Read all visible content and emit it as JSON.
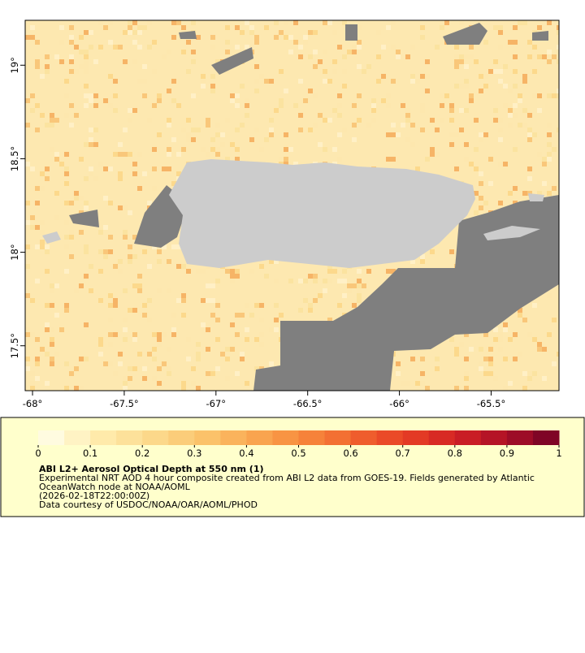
{
  "map": {
    "xlim": [
      -68.04,
      -65.13
    ],
    "ylim": [
      17.26,
      19.24
    ],
    "xticks": [
      {
        "value": -68,
        "label": "-68°"
      },
      {
        "value": -67.5,
        "label": "-67.5°"
      },
      {
        "value": -67,
        "label": "-67°"
      },
      {
        "value": -66.5,
        "label": "-66.5°"
      },
      {
        "value": -66,
        "label": "-66°"
      },
      {
        "value": -65.5,
        "label": "-65.5°"
      }
    ],
    "yticks": [
      {
        "value": 17.5,
        "label": "17.5°"
      },
      {
        "value": 18,
        "label": "18°"
      },
      {
        "value": 18.5,
        "label": "18.5°"
      },
      {
        "value": 19,
        "label": "19°"
      }
    ]
  },
  "colorbar": {
    "lim": [
      0,
      1
    ],
    "ticks": [
      0,
      0.1,
      0.2,
      0.3,
      0.4,
      0.5,
      0.6,
      0.7,
      0.8,
      0.9,
      1
    ],
    "colors": [
      "#fffbe0",
      "#fff3c4",
      "#ffeaaa",
      "#fde19a",
      "#fcd88a",
      "#fbcd7a",
      "#fbc26a",
      "#fab35c",
      "#f9a44f",
      "#f89443",
      "#f6823a",
      "#f37033",
      "#ef5d2d",
      "#ea4a28",
      "#e33a25",
      "#d82a24",
      "#c91d25",
      "#b51426",
      "#9d0c27",
      "#7f0526"
    ]
  },
  "legend": {
    "title": "ABI L2+ Aerosol Optical Depth at 550 nm (1)",
    "lines": [
      "Experimental NRT AOD 4 hour composite created from ABI L2 data from GOES-19. Fields generated by Atlantic",
      "OceanWatch node at NOAA/AOML",
      "(2026-02-18T22:00:00Z)",
      "Data courtesy of USDOC/NOAA/OAR/AOML/PHOD"
    ]
  }
}
